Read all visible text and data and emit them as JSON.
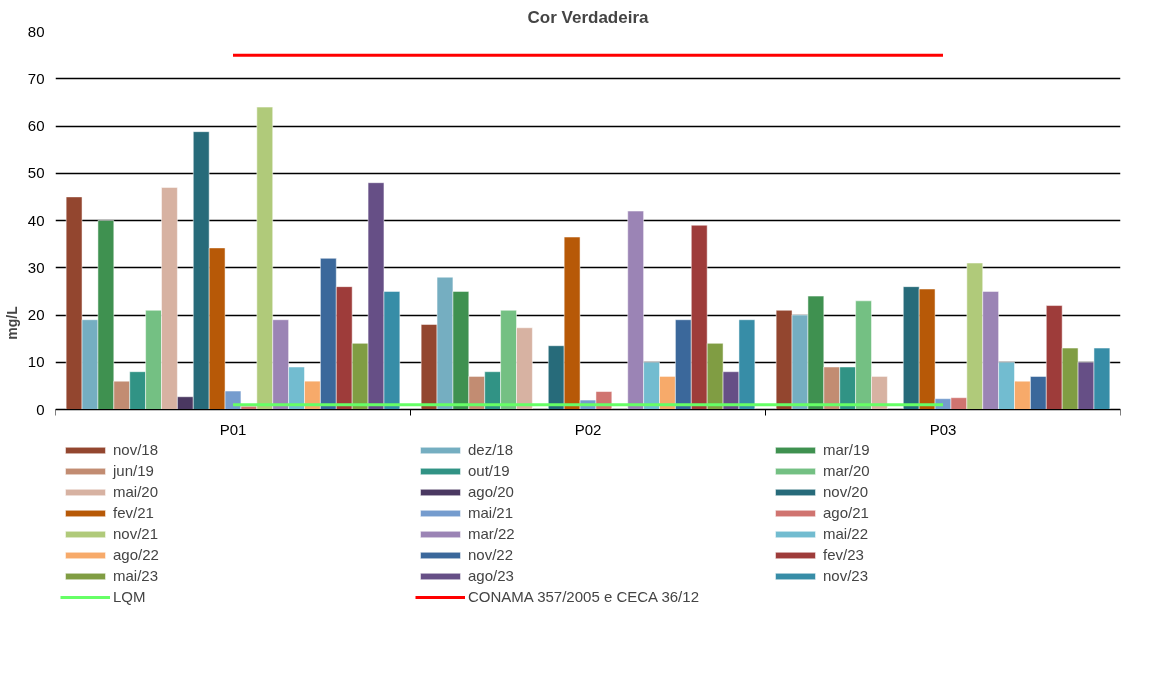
{
  "chart_data": {
    "type": "bar",
    "title": "Cor Verdadeira",
    "ylabel": "mg/L",
    "categories": [
      "P01",
      "P02",
      "P03"
    ],
    "ylim": [
      0,
      80
    ],
    "yticks": [
      0,
      10,
      20,
      30,
      40,
      50,
      60,
      70,
      80
    ],
    "grid": "y",
    "legend": "bottom",
    "series": [
      {
        "name": "nov/18",
        "color": "#93462f",
        "values": [
          45,
          18,
          21
        ]
      },
      {
        "name": "dez/18",
        "color": "#75aec1",
        "values": [
          19,
          28,
          20
        ]
      },
      {
        "name": "mar/19",
        "color": "#3f9150",
        "values": [
          40,
          25,
          24
        ]
      },
      {
        "name": "jun/19",
        "color": "#c28c72",
        "values": [
          6,
          7,
          9
        ]
      },
      {
        "name": "out/19",
        "color": "#319385",
        "values": [
          8,
          8,
          9
        ]
      },
      {
        "name": "mar/20",
        "color": "#74c083",
        "values": [
          21,
          21,
          23
        ]
      },
      {
        "name": "mai/20",
        "color": "#d7b2a2",
        "values": [
          47,
          17.3,
          7
        ]
      },
      {
        "name": "ago/20",
        "color": "#4a3861",
        "values": [
          2.7,
          null,
          null
        ]
      },
      {
        "name": "nov/20",
        "color": "#276b7a",
        "values": [
          58.8,
          13.5,
          26
        ]
      },
      {
        "name": "fev/21",
        "color": "#b75907",
        "values": [
          34.2,
          36.5,
          25.5
        ]
      },
      {
        "name": "mai/21",
        "color": "#759cce",
        "values": [
          3.9,
          2,
          2.3
        ]
      },
      {
        "name": "ago/21",
        "color": "#d07470",
        "values": [
          0.7,
          3.8,
          2.5
        ]
      },
      {
        "name": "nov/21",
        "color": "#b0ca7a",
        "values": [
          64,
          null,
          31
        ]
      },
      {
        "name": "mar/22",
        "color": "#9b84b5",
        "values": [
          19,
          42,
          25
        ]
      },
      {
        "name": "mai/22",
        "color": "#72bcd0",
        "values": [
          9,
          10,
          10
        ]
      },
      {
        "name": "ago/22",
        "color": "#f7aa6a",
        "values": [
          6,
          7,
          6
        ]
      },
      {
        "name": "nov/22",
        "color": "#3b689b",
        "values": [
          32,
          19,
          7
        ]
      },
      {
        "name": "fev/23",
        "color": "#9e3c3a",
        "values": [
          26,
          39,
          22
        ]
      },
      {
        "name": "mai/23",
        "color": "#809d43",
        "values": [
          14,
          14,
          13
        ]
      },
      {
        "name": "ago/23",
        "color": "#664f86",
        "values": [
          48,
          8,
          10
        ]
      },
      {
        "name": "nov/23",
        "color": "#378da7",
        "values": [
          25,
          19,
          13
        ]
      },
      {
        "name": "LQM",
        "type": "line",
        "color": "#66ff66",
        "values": [
          1,
          1,
          1
        ]
      },
      {
        "name": "CONAMA 357/2005 e CECA 36/12",
        "type": "line",
        "color": "#ff0000",
        "values": [
          75,
          75,
          75
        ]
      }
    ]
  }
}
